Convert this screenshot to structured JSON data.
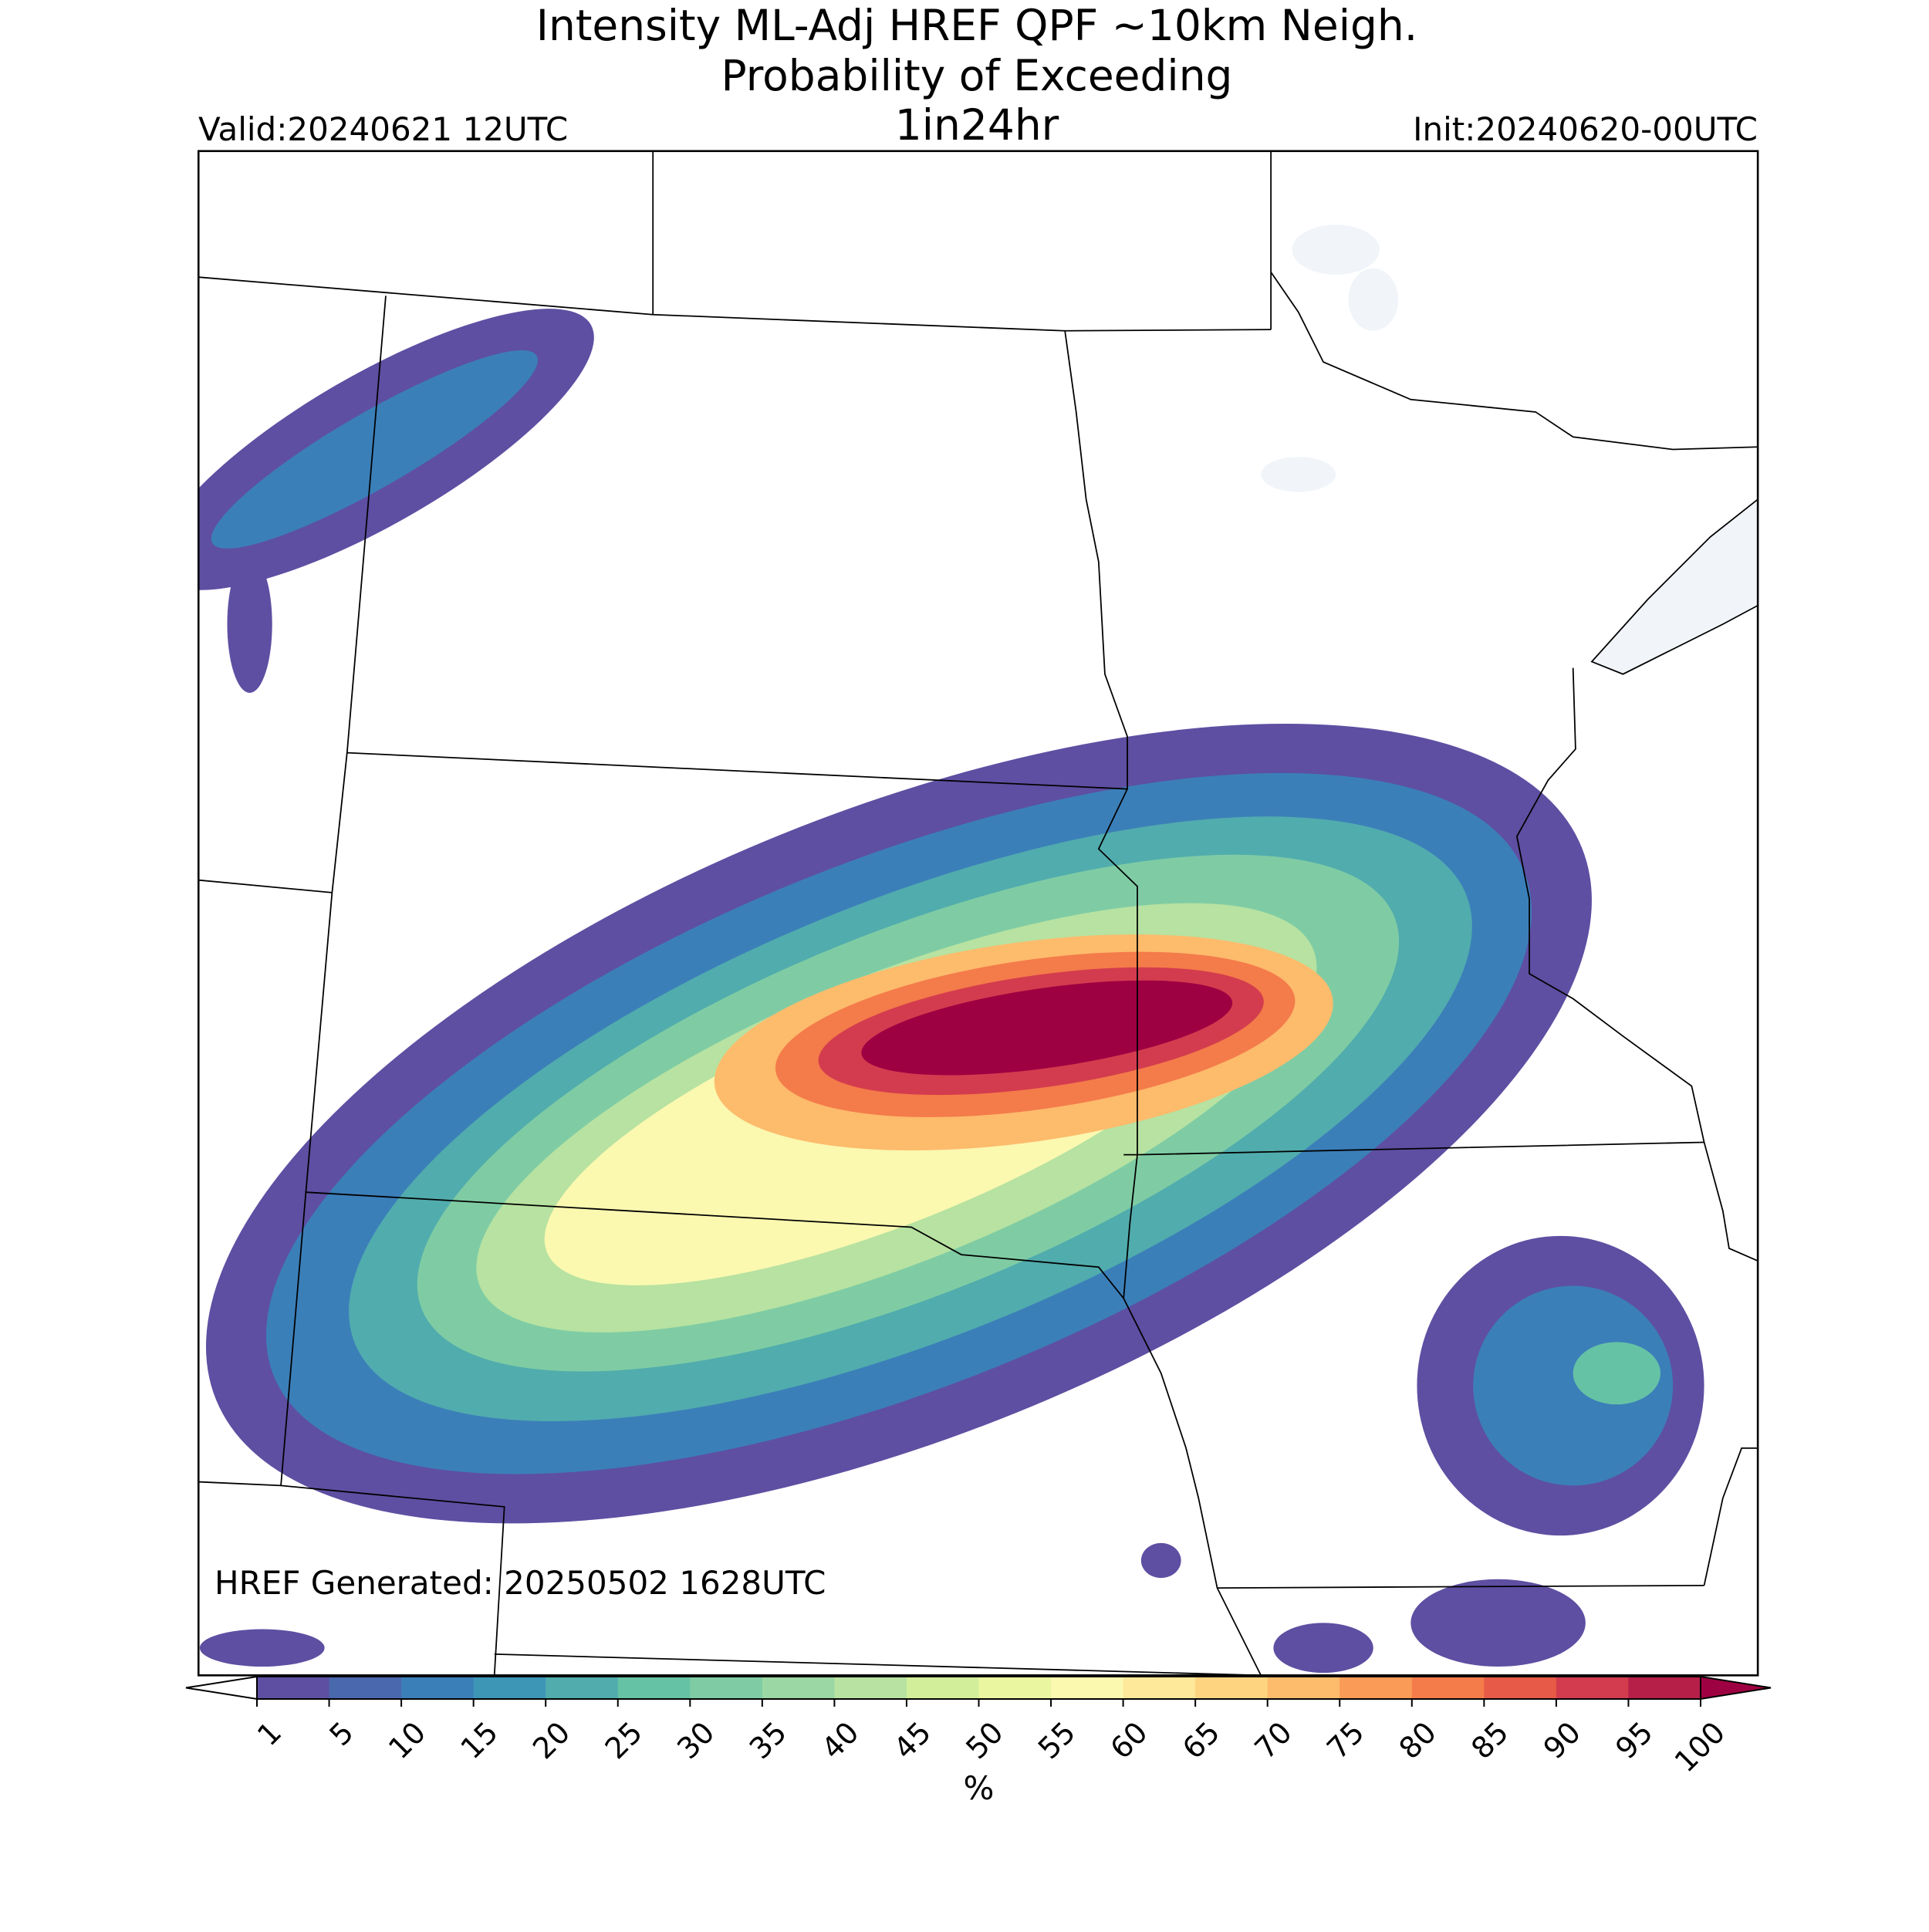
{
  "title_lines": [
    "Intensity ML-Adj HREF QPF ~10km Neigh.",
    "Probability of Exceeding"
  ],
  "subtitle": "1in24hr",
  "valid": "Valid:20240621 12UTC",
  "init": "Init:20240620-00UTC",
  "generated": "HREF Generated: 20250502 1628UTC",
  "colorbar": {
    "label": "%",
    "ticks": [
      1,
      5,
      10,
      15,
      20,
      25,
      30,
      35,
      40,
      45,
      50,
      55,
      60,
      65,
      70,
      75,
      80,
      85,
      90,
      95,
      100
    ],
    "colors": [
      "#5e4fa2",
      "#4a68ad",
      "#3b7fb9",
      "#3e96b7",
      "#51acad",
      "#66c2a5",
      "#7fcca4",
      "#9bd7a4",
      "#b7e2a1",
      "#d3ee9b",
      "#ebf7a0",
      "#fbf8b0",
      "#fee89a",
      "#fed481",
      "#fdbb6c",
      "#fa9b58",
      "#f47b4a",
      "#e65a47",
      "#d33c4e",
      "#b51f48"
    ],
    "under_color": "#ffffff",
    "over_color": "#9e0142"
  }
}
